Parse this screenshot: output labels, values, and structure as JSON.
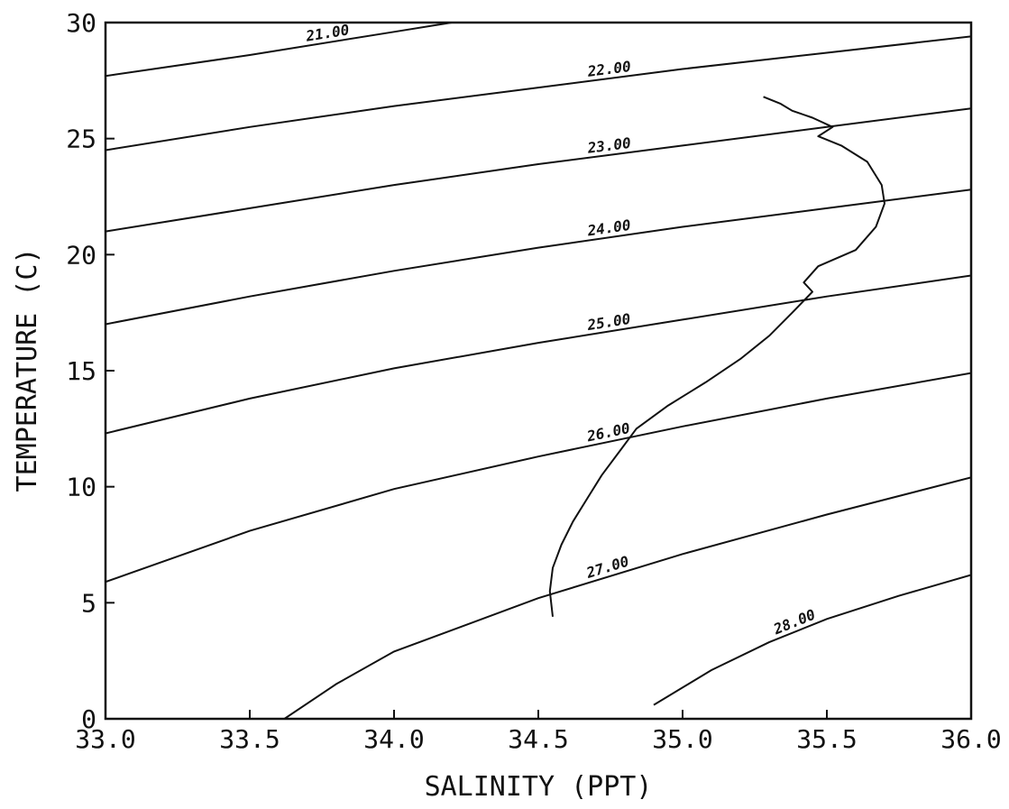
{
  "chart_data": {
    "type": "line",
    "title": "",
    "xlabel": "SALINITY (PPT)",
    "ylabel": "TEMPERATURE (C)",
    "xlim": [
      33.0,
      36.0
    ],
    "ylim": [
      0,
      30
    ],
    "grid": false,
    "x_ticks": [
      "33.0",
      "33.5",
      "34.0",
      "34.5",
      "35.0",
      "35.5",
      "36.0"
    ],
    "y_ticks": [
      "0",
      "5",
      "10",
      "15",
      "20",
      "25",
      "30"
    ],
    "ink_color": "#111111",
    "isopycnals": [
      {
        "label": "21.00",
        "points": [
          [
            33.0,
            27.7
          ],
          [
            33.5,
            28.6
          ],
          [
            34.0,
            29.6
          ],
          [
            34.2,
            30.0
          ]
        ]
      },
      {
        "label": "22.00",
        "points": [
          [
            33.0,
            24.5
          ],
          [
            33.5,
            25.5
          ],
          [
            34.0,
            26.4
          ],
          [
            34.5,
            27.2
          ],
          [
            35.0,
            28.0
          ],
          [
            35.5,
            28.7
          ],
          [
            36.0,
            29.4
          ]
        ]
      },
      {
        "label": "23.00",
        "points": [
          [
            33.0,
            21.0
          ],
          [
            33.5,
            22.0
          ],
          [
            34.0,
            23.0
          ],
          [
            34.5,
            23.9
          ],
          [
            35.0,
            24.7
          ],
          [
            35.5,
            25.5
          ],
          [
            36.0,
            26.3
          ]
        ]
      },
      {
        "label": "24.00",
        "points": [
          [
            33.0,
            17.0
          ],
          [
            33.5,
            18.2
          ],
          [
            34.0,
            19.3
          ],
          [
            34.5,
            20.3
          ],
          [
            35.0,
            21.2
          ],
          [
            35.5,
            22.0
          ],
          [
            36.0,
            22.8
          ]
        ]
      },
      {
        "label": "25.00",
        "points": [
          [
            33.0,
            12.3
          ],
          [
            33.5,
            13.8
          ],
          [
            34.0,
            15.1
          ],
          [
            34.5,
            16.2
          ],
          [
            35.0,
            17.2
          ],
          [
            35.5,
            18.2
          ],
          [
            36.0,
            19.1
          ]
        ]
      },
      {
        "label": "26.00",
        "points": [
          [
            33.0,
            5.9
          ],
          [
            33.5,
            8.1
          ],
          [
            34.0,
            9.9
          ],
          [
            34.5,
            11.3
          ],
          [
            35.0,
            12.6
          ],
          [
            35.5,
            13.8
          ],
          [
            36.0,
            14.9
          ]
        ]
      },
      {
        "label": "27.00",
        "points": [
          [
            33.62,
            0.0
          ],
          [
            33.8,
            1.5
          ],
          [
            34.0,
            2.9
          ],
          [
            34.5,
            5.2
          ],
          [
            35.0,
            7.1
          ],
          [
            35.5,
            8.8
          ],
          [
            36.0,
            10.4
          ]
        ]
      },
      {
        "label": "28.00",
        "points": [
          [
            34.9,
            0.6
          ],
          [
            35.1,
            2.1
          ],
          [
            35.3,
            3.3
          ],
          [
            35.5,
            4.3
          ],
          [
            35.75,
            5.3
          ],
          [
            36.0,
            6.2
          ]
        ]
      }
    ],
    "series": [
      {
        "points": [
          [
            34.55,
            4.4
          ],
          [
            34.54,
            5.5
          ],
          [
            34.55,
            6.5
          ],
          [
            34.58,
            7.5
          ],
          [
            34.62,
            8.5
          ],
          [
            34.67,
            9.5
          ],
          [
            34.72,
            10.5
          ],
          [
            34.78,
            11.5
          ],
          [
            34.84,
            12.5
          ],
          [
            34.95,
            13.5
          ],
          [
            35.08,
            14.5
          ],
          [
            35.2,
            15.5
          ],
          [
            35.3,
            16.5
          ],
          [
            35.38,
            17.5
          ],
          [
            35.45,
            18.4
          ],
          [
            35.42,
            18.8
          ],
          [
            35.47,
            19.5
          ],
          [
            35.6,
            20.2
          ],
          [
            35.67,
            21.2
          ],
          [
            35.7,
            22.2
          ],
          [
            35.69,
            23.0
          ],
          [
            35.64,
            24.0
          ],
          [
            35.55,
            24.7
          ],
          [
            35.47,
            25.1
          ],
          [
            35.52,
            25.5
          ],
          [
            35.45,
            25.9
          ],
          [
            35.38,
            26.2
          ],
          [
            35.34,
            26.5
          ],
          [
            35.28,
            26.8
          ]
        ]
      }
    ]
  }
}
